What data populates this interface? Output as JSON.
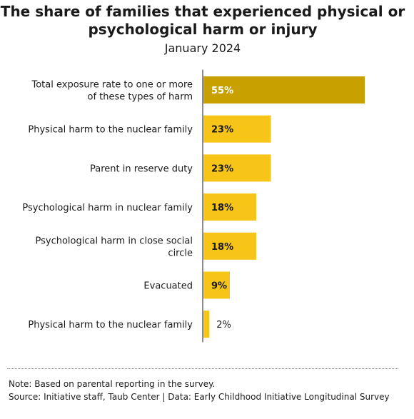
{
  "colors": {
    "highlight_bar": "#c8a000",
    "bar": "#f7c418",
    "axis": "#1a1a1a",
    "text": "#1a1a1a"
  },
  "chart_data": {
    "type": "bar",
    "orientation": "horizontal",
    "title": "The share of families that experienced physical or psychological harm or injury",
    "subtitle": "January 2024",
    "categories": [
      "Total exposure rate to one or more of these types of harm",
      "Physical harm to the nuclear family",
      "Parent in reserve duty",
      "Psychological harm in nuclear family",
      "Psychological harm in close social circle",
      "Evacuated",
      "Physical harm to the nuclear family"
    ],
    "values": [
      55,
      23,
      23,
      18,
      18,
      9,
      2
    ],
    "value_labels": [
      "55%",
      "23%",
      "23%",
      "18%",
      "18%",
      "9%",
      "2%"
    ],
    "value_unit": "%",
    "xlim": [
      0,
      55
    ],
    "grid": false,
    "legend": "none"
  },
  "footer": {
    "note": "Note: Based on parental reporting in the survey.",
    "source": "Source: Initiative staff, Taub Center | Data: Early Childhood Initiative Longitudinal Survey"
  }
}
